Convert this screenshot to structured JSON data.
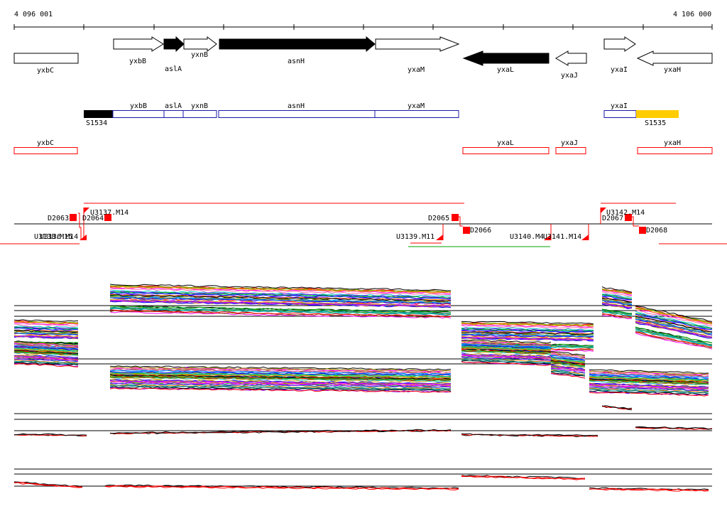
{
  "coords": {
    "start": "4 096 001",
    "end": "4 106 000"
  },
  "genes": [
    {
      "name": "yxbC",
      "dir": "none",
      "fill": "white"
    },
    {
      "name": "yxbB",
      "dir": "right",
      "fill": "white"
    },
    {
      "name": "aslA",
      "dir": "right",
      "fill": "black"
    },
    {
      "name": "yxnB",
      "dir": "right",
      "fill": "white"
    },
    {
      "name": "asnH",
      "dir": "right",
      "fill": "black"
    },
    {
      "name": "yxaM",
      "dir": "right",
      "fill": "white"
    },
    {
      "name": "yxaL",
      "dir": "left",
      "fill": "black"
    },
    {
      "name": "yxaJ",
      "dir": "left",
      "fill": "white"
    },
    {
      "name": "yxaI",
      "dir": "right",
      "fill": "white"
    },
    {
      "name": "yxaH",
      "dir": "left",
      "fill": "white"
    }
  ],
  "operon_units": [
    {
      "label": "S1534",
      "kind": "black"
    },
    {
      "label": "yxbB",
      "kind": "blue"
    },
    {
      "label": "aslA",
      "kind": "blue"
    },
    {
      "label": "yxnB",
      "kind": "blue"
    },
    {
      "label": "asnH",
      "kind": "blue"
    },
    {
      "label": "yxaM",
      "kind": "blue"
    },
    {
      "label": "yxaI",
      "kind": "blue"
    },
    {
      "label": "S1535",
      "kind": "yellow"
    }
  ],
  "red_units": [
    "yxbC",
    "yxaL",
    "yxaJ",
    "yxaH"
  ],
  "features": [
    "D2063",
    "D2064",
    "U3137.M14",
    "D2065",
    "D2066",
    "U3142.M14",
    "D2067",
    "D2068",
    "U3138.M15",
    "U3136.M14",
    "U3139.M11",
    "U3140.M4",
    "U3141.M14"
  ],
  "colors": {
    "red": "#ff0000",
    "blue": "#1a1aa8",
    "yellow": "#ffcc00",
    "green": "#00a000"
  }
}
